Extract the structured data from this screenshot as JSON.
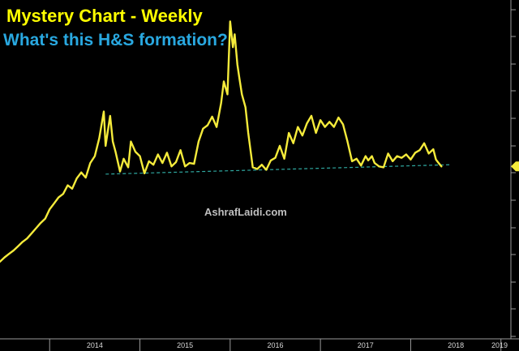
{
  "chart_data": {
    "type": "line",
    "title": "Mystery Chart - Weekly",
    "subtitle": "What's this H&S formation?",
    "watermark": "AshrafLaidi.com",
    "x_tick_labels": [
      "2014",
      "2015",
      "2016",
      "2017",
      "2018",
      "2019"
    ],
    "y_tick_labels": [],
    "grid": false,
    "colors": {
      "background": "#000000",
      "line": "#f5eb3b",
      "title": "#ffff00",
      "subtitle": "#29a8e0",
      "neckline": "#2fa8a0"
    },
    "series": [
      {
        "x": [
          2013.45,
          2013.5,
          2013.55,
          2013.6,
          2013.65,
          2013.7,
          2013.75,
          2013.8,
          2013.85,
          2013.9,
          2013.95,
          2014.0,
          2014.05,
          2014.1,
          2014.15,
          2014.2,
          2014.25,
          2014.3,
          2014.35,
          2014.4,
          2014.45,
          2014.5,
          2014.55,
          2014.6,
          2014.62,
          2014.67,
          2014.7,
          2014.73,
          2014.78,
          2014.82,
          2014.87,
          2014.9,
          2014.95,
          2015.0,
          2015.05,
          2015.1,
          2015.15,
          2015.2,
          2015.25,
          2015.3,
          2015.35,
          2015.4,
          2015.45,
          2015.5,
          2015.55,
          2015.6,
          2015.65,
          2015.7,
          2015.75,
          2015.8,
          2015.85,
          2015.9,
          2015.93,
          2015.97,
          2016.0,
          2016.03,
          2016.05,
          2016.08,
          2016.1,
          2016.13,
          2016.17,
          2016.2,
          2016.25,
          2016.3,
          2016.35,
          2016.4,
          2016.45,
          2016.5,
          2016.55,
          2016.6,
          2016.65,
          2016.7,
          2016.75,
          2016.8,
          2016.85,
          2016.9,
          2016.95,
          2017.0,
          2017.05,
          2017.1,
          2017.15,
          2017.2,
          2017.25,
          2017.3,
          2017.35,
          2017.4,
          2017.45,
          2017.5,
          2017.53,
          2017.57,
          2017.6,
          2017.65,
          2017.7,
          2017.75,
          2017.8,
          2017.85,
          2017.9,
          2017.95,
          2018.0,
          2018.05,
          2018.1,
          2018.15,
          2018.2,
          2018.25,
          2018.28,
          2018.31,
          2018.34
        ],
        "y": [
          2.5,
          3.0,
          3.4,
          3.8,
          4.3,
          4.8,
          5.2,
          5.8,
          6.4,
          7.0,
          7.5,
          8.6,
          9.3,
          10.0,
          10.4,
          11.4,
          11.0,
          12.2,
          12.9,
          12.3,
          14.0,
          14.8,
          16.9,
          20.0,
          16.0,
          19.5,
          16.5,
          15.3,
          13.0,
          14.5,
          13.5,
          16.5,
          15.3,
          14.8,
          12.8,
          14.2,
          13.8,
          15.0,
          14.0,
          15.2,
          13.6,
          14.1,
          15.5,
          13.6,
          14.0,
          13.9,
          16.5,
          18.0,
          18.4,
          19.4,
          18.2,
          21.0,
          23.5,
          22.0,
          30.5,
          27.5,
          29.0,
          25.5,
          24.0,
          22.0,
          20.5,
          17.5,
          13.5,
          13.3,
          13.8,
          13.2,
          14.3,
          14.6,
          16.0,
          14.5,
          17.5,
          16.3,
          18.2,
          17.2,
          18.6,
          19.5,
          17.5,
          19.0,
          18.2,
          18.8,
          18.2,
          19.3,
          18.5,
          16.5,
          14.2,
          14.5,
          13.7,
          14.8,
          14.3,
          14.8,
          14.0,
          13.6,
          13.5,
          15.1,
          14.2,
          14.8,
          14.6,
          15.0,
          14.4,
          15.2,
          15.5,
          16.3,
          15.1,
          15.6,
          14.4,
          14.0,
          13.6
        ]
      }
    ],
    "annotations": [
      {
        "type": "neckline",
        "style": "dashed",
        "x": [
          2014.62,
          2018.45
        ],
        "y": [
          12.7,
          13.8
        ]
      }
    ],
    "xlim": [
      2013.45,
      2019.2
    ],
    "ylim": [
      -6.5,
      33.0
    ]
  }
}
